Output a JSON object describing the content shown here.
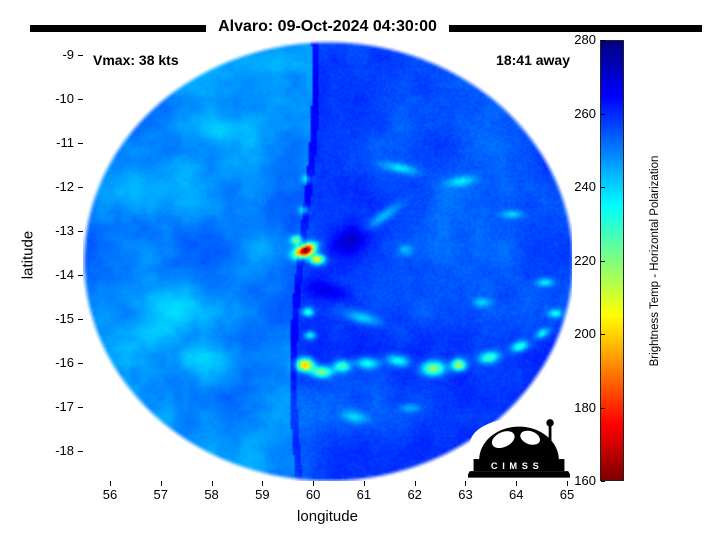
{
  "colors": {
    "background": "#ffffff",
    "frame": "#000000"
  },
  "logo": {
    "text": "CIMSS"
  },
  "chart_data": {
    "type": "heatmap",
    "title": "Alvaro: 09-Oct-2024 04:30:00",
    "xlabel": "longitude",
    "ylabel": "latitude",
    "x_ticks": [
      56,
      57,
      58,
      59,
      60,
      61,
      62,
      63,
      64,
      65
    ],
    "y_ticks": [
      -9,
      -10,
      -11,
      -12,
      -13,
      -14,
      -15,
      -16,
      -17,
      -18
    ],
    "xlim": [
      55.5,
      65.1
    ],
    "ylim": [
      -18.7,
      -8.7
    ],
    "grid": false,
    "annotations": [
      {
        "text": "Vmax: 38 kts",
        "position": "top-left"
      },
      {
        "text": "18:41 away",
        "position": "top-right"
      }
    ],
    "colorbar": {
      "label": "Brightness Temp - Horizontal Polarization",
      "ticks": [
        280,
        260,
        240,
        220,
        200,
        180,
        160
      ],
      "min": 160,
      "max": 280,
      "colormap": "jet-reversed",
      "position": "right"
    },
    "swath": {
      "description": "Circular microwave brightness-temperature swath of TC Alvaro; values in K mapped through reversed jet colormap",
      "center": {
        "lon": 60.28,
        "lat": -13.67
      },
      "seam_lon": 59.74,
      "left_segment_mean_K": 249.5,
      "right_segment_mean_K": 256.5,
      "hot_spot": {
        "lon": 59.82,
        "lat": -13.42,
        "min_K": 163
      },
      "features": [
        [
          59.82,
          -13.42,
          -105,
          7,
          4,
          -25
        ],
        [
          60.06,
          -13.62,
          -55,
          5,
          3.5,
          0
        ],
        [
          59.66,
          -13.18,
          -35,
          4,
          3,
          0
        ],
        [
          59.82,
          -16.02,
          -62,
          6,
          4.5,
          0
        ],
        [
          60.15,
          -16.18,
          -40,
          7,
          4,
          0
        ],
        [
          60.55,
          -16.05,
          -32,
          6,
          4,
          0
        ],
        [
          61.05,
          -15.98,
          -25,
          8,
          4,
          5
        ],
        [
          61.65,
          -15.92,
          -26,
          8,
          4,
          10
        ],
        [
          62.35,
          -16.1,
          -42,
          8,
          5,
          0
        ],
        [
          62.85,
          -16.02,
          -46,
          5,
          4,
          0
        ],
        [
          63.45,
          -15.85,
          -30,
          7,
          4,
          -10
        ],
        [
          64.05,
          -15.6,
          -28,
          6,
          3.5,
          -20
        ],
        [
          64.5,
          -15.3,
          -22,
          5,
          3,
          -30
        ],
        [
          59.88,
          -14.82,
          -28,
          4,
          3,
          0
        ],
        [
          59.92,
          -15.35,
          -24,
          4,
          3,
          0
        ],
        [
          59.8,
          -12.5,
          -20,
          3.5,
          3,
          0
        ],
        [
          59.85,
          -11.8,
          -16,
          3.5,
          3,
          0
        ],
        [
          60.7,
          -13.2,
          12,
          14,
          8,
          -30
        ],
        [
          60.3,
          -14.35,
          9,
          16,
          6,
          15
        ],
        [
          61.35,
          -12.65,
          -16,
          14,
          4,
          -35
        ],
        [
          60.95,
          -14.95,
          -18,
          12,
          4,
          15
        ],
        [
          61.8,
          -13.4,
          -12,
          5,
          4,
          0
        ],
        [
          61.7,
          -11.55,
          -18,
          12,
          3.5,
          12
        ],
        [
          62.9,
          -11.85,
          -16,
          10,
          3.5,
          -8
        ],
        [
          63.9,
          -12.6,
          -15,
          8,
          3,
          0
        ],
        [
          64.55,
          -14.15,
          -20,
          6,
          3,
          0
        ],
        [
          64.75,
          -14.85,
          -22,
          5,
          3,
          0
        ],
        [
          63.3,
          -14.6,
          -14,
          6,
          3,
          0
        ],
        [
          57.0,
          -14.8,
          -11,
          26,
          18,
          0
        ],
        [
          57.9,
          -15.9,
          -9,
          20,
          12,
          0
        ],
        [
          56.5,
          -12.0,
          -8,
          18,
          14,
          0
        ],
        [
          58.3,
          -10.7,
          -7,
          16,
          10,
          0
        ],
        [
          58.9,
          -13.4,
          -8,
          14,
          10,
          0
        ],
        [
          60.8,
          -17.2,
          -15,
          9,
          4,
          10
        ],
        [
          61.9,
          -17.0,
          -12,
          7,
          3,
          0
        ]
      ]
    }
  }
}
